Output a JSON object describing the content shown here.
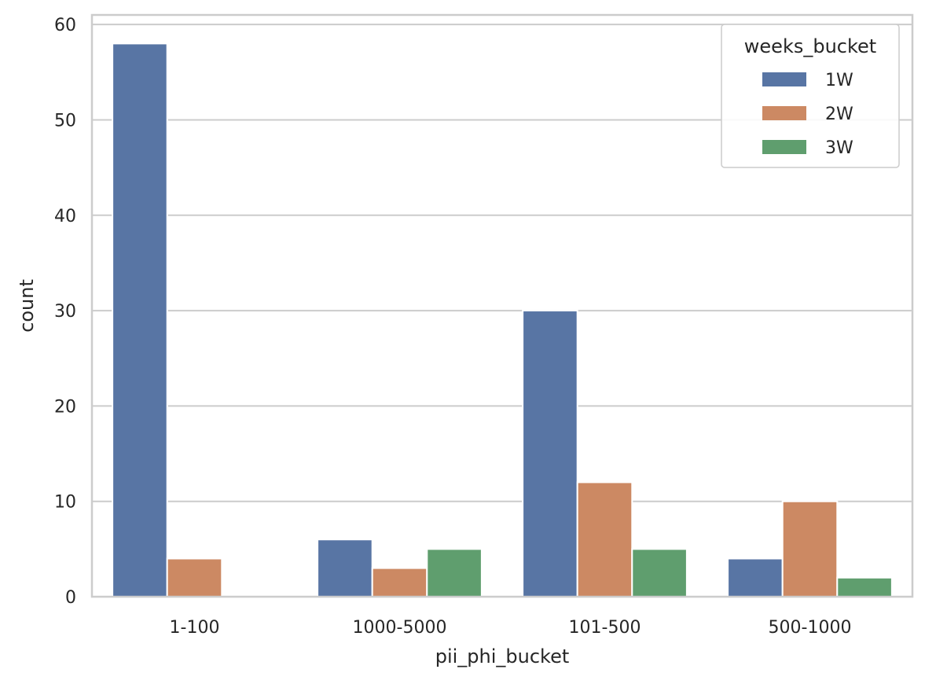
{
  "chart_data": {
    "type": "bar",
    "title": "",
    "xlabel": "pii_phi_bucket",
    "ylabel": "count",
    "categories": [
      "1-100",
      "1000-5000",
      "101-500",
      "500-1000"
    ],
    "series": [
      {
        "name": "1W",
        "color": "#5875a4",
        "values": [
          58,
          6,
          30,
          4
        ]
      },
      {
        "name": "2W",
        "color": "#cc8963",
        "values": [
          4,
          3,
          12,
          10
        ]
      },
      {
        "name": "3W",
        "color": "#5f9e6e",
        "values": [
          0,
          5,
          5,
          2
        ]
      }
    ],
    "ylim": [
      0,
      61
    ],
    "yticks": [
      0,
      10,
      20,
      30,
      40,
      50,
      60
    ],
    "grid": "horizontal",
    "legend": {
      "title": "weeks_bucket",
      "position": "top-right"
    }
  }
}
